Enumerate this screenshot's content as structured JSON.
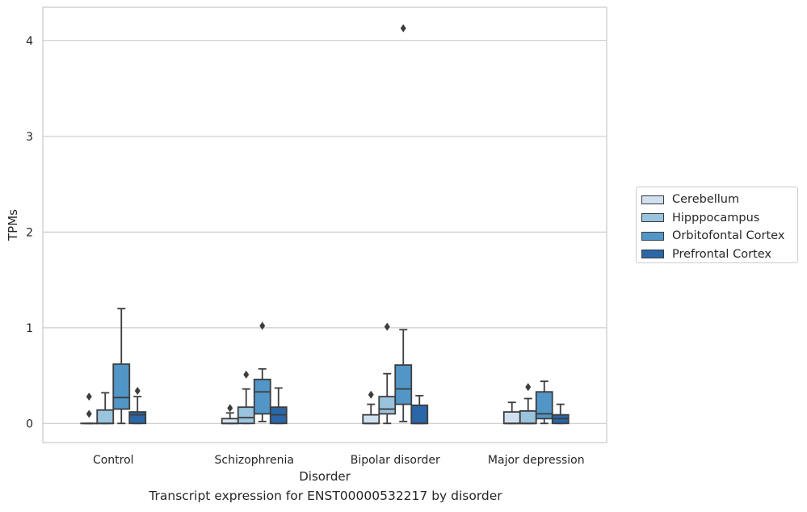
{
  "chart_data": {
    "type": "box",
    "title": "Transcript expression for ENST00000532217 by disorder",
    "xlabel": "Disorder",
    "ylabel": "TPMs",
    "ylim": [
      -0.2,
      4.35
    ],
    "yticks": [
      0,
      1,
      2,
      3,
      4
    ],
    "grid": "horizontal",
    "legend_position": "right",
    "categories": [
      "Control",
      "Schizophrenia",
      "Bipolar disorder",
      "Major depression"
    ],
    "series": [
      {
        "name": "Cerebellum",
        "color": "#d0e0f0",
        "boxes": [
          {
            "whislo": 0.0,
            "q1": 0.0,
            "med": 0.0,
            "q3": 0.0,
            "whishi": 0.0,
            "fliers": [
              0.1,
              0.28
            ]
          },
          {
            "whislo": 0.0,
            "q1": 0.0,
            "med": 0.0,
            "q3": 0.05,
            "whishi": 0.11,
            "fliers": [
              0.16
            ]
          },
          {
            "whislo": 0.0,
            "q1": 0.0,
            "med": 0.0,
            "q3": 0.09,
            "whishi": 0.2,
            "fliers": [
              0.3
            ]
          },
          {
            "whislo": 0.0,
            "q1": 0.0,
            "med": 0.0,
            "q3": 0.12,
            "whishi": 0.22,
            "fliers": []
          }
        ]
      },
      {
        "name": "Hipppocampus",
        "color": "#9ac3de",
        "boxes": [
          {
            "whislo": 0.0,
            "q1": 0.0,
            "med": 0.0,
            "q3": 0.14,
            "whishi": 0.32,
            "fliers": []
          },
          {
            "whislo": 0.0,
            "q1": 0.0,
            "med": 0.06,
            "q3": 0.17,
            "whishi": 0.36,
            "fliers": [
              0.51
            ]
          },
          {
            "whislo": 0.0,
            "q1": 0.1,
            "med": 0.15,
            "q3": 0.28,
            "whishi": 0.52,
            "fliers": [
              1.01
            ]
          },
          {
            "whislo": 0.0,
            "q1": 0.0,
            "med": 0.0,
            "q3": 0.13,
            "whishi": 0.26,
            "fliers": [
              0.38
            ]
          }
        ]
      },
      {
        "name": "Orbitofontal Cortex",
        "color": "#5296c8",
        "boxes": [
          {
            "whislo": 0.0,
            "q1": 0.15,
            "med": 0.27,
            "q3": 0.62,
            "whishi": 1.2,
            "fliers": []
          },
          {
            "whislo": 0.02,
            "q1": 0.1,
            "med": 0.33,
            "q3": 0.46,
            "whishi": 0.57,
            "fliers": [
              1.02
            ]
          },
          {
            "whislo": 0.02,
            "q1": 0.2,
            "med": 0.36,
            "q3": 0.61,
            "whishi": 0.98,
            "fliers": [
              4.13
            ]
          },
          {
            "whislo": 0.0,
            "q1": 0.05,
            "med": 0.1,
            "q3": 0.33,
            "whishi": 0.44,
            "fliers": []
          }
        ]
      },
      {
        "name": "Prefrontal Cortex",
        "color": "#2a66a8",
        "boxes": [
          {
            "whislo": 0.0,
            "q1": 0.0,
            "med": 0.09,
            "q3": 0.12,
            "whishi": 0.28,
            "fliers": [
              0.34
            ]
          },
          {
            "whislo": 0.0,
            "q1": 0.0,
            "med": 0.09,
            "q3": 0.17,
            "whishi": 0.37,
            "fliers": []
          },
          {
            "whislo": 0.0,
            "q1": 0.0,
            "med": 0.0,
            "q3": 0.19,
            "whishi": 0.29,
            "fliers": []
          },
          {
            "whislo": 0.0,
            "q1": 0.0,
            "med": 0.05,
            "q3": 0.09,
            "whishi": 0.2,
            "fliers": []
          }
        ]
      }
    ]
  }
}
